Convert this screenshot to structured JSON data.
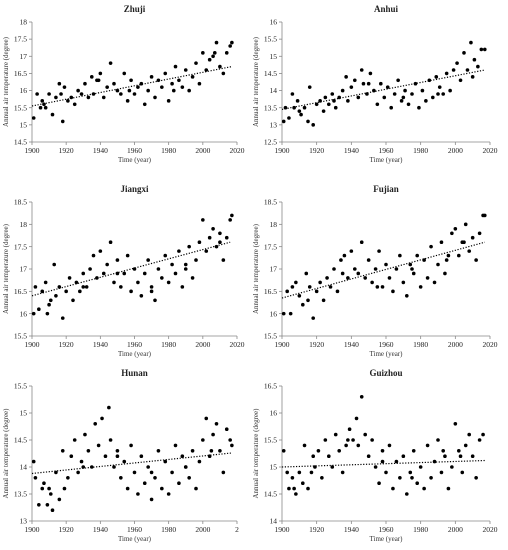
{
  "chart_data": [
    {
      "type": "scatter",
      "title": "Zhuji",
      "xlabel": "Time (year)",
      "ylabel": "Annual air temperature (degree)",
      "xlim": [
        1900,
        2020
      ],
      "ylim": [
        14.5,
        18
      ],
      "xticks": [
        "1900",
        "1920",
        "1940",
        "1960",
        "1980",
        "2000",
        "2020"
      ],
      "yticks": [
        "14.5",
        "15",
        "15.5",
        "16",
        "16.5",
        "17",
        "17.5",
        "18"
      ],
      "trend": {
        "x": [
          1900,
          2017
        ],
        "y": [
          15.55,
          16.7
        ]
      },
      "points": {
        "x": [
          1901,
          1903,
          1905,
          1907,
          1908,
          1910,
          1912,
          1914,
          1916,
          1918,
          1919,
          1921,
          1923,
          1925,
          1927,
          1929,
          1931,
          1933,
          1935,
          1936,
          1938,
          1940,
          1942,
          1944,
          1946,
          1948,
          1950,
          1952,
          1954,
          1956,
          1958,
          1960,
          1962,
          1964,
          1966,
          1968,
          1970,
          1972,
          1974,
          1976,
          1978,
          1980,
          1982,
          1984,
          1986,
          1988,
          1990,
          1992,
          1994,
          1996,
          1998,
          2000,
          2002,
          2004,
          2006,
          2008,
          2010,
          2012,
          2014,
          2016,
          2017,
          1906,
          1917,
          1939,
          1957,
          1983,
          2007
        ],
        "y": [
          15.2,
          15.9,
          15.5,
          15.6,
          15.5,
          15.9,
          15.3,
          15.8,
          16.2,
          15.1,
          16.1,
          15.7,
          15.8,
          15.6,
          16.0,
          15.9,
          16.2,
          15.8,
          16.4,
          15.9,
          16.3,
          16.5,
          15.8,
          16.1,
          16.8,
          16.2,
          16.0,
          15.9,
          16.5,
          15.7,
          16.3,
          15.9,
          16.1,
          16.2,
          15.6,
          16.0,
          16.4,
          15.8,
          16.3,
          16.1,
          16.5,
          15.7,
          16.2,
          16.7,
          16.3,
          16.1,
          16.6,
          16.0,
          16.4,
          16.8,
          16.2,
          17.1,
          16.6,
          16.9,
          17.0,
          17.4,
          16.7,
          16.5,
          17.1,
          17.3,
          17.4,
          15.7,
          15.9,
          16.3,
          16.0,
          16.0,
          17.1
        ]
      }
    },
    {
      "type": "scatter",
      "title": "Anhui",
      "xlabel": "Time (year)",
      "ylabel": "Annual air temperature (degree)",
      "xlim": [
        1900,
        2020
      ],
      "ylim": [
        12.5,
        16
      ],
      "xticks": [
        "1900",
        "1920",
        "1940",
        "1960",
        "1980",
        "2000",
        "2020"
      ],
      "yticks": [
        "12.5",
        "13",
        "13.5",
        "14",
        "14.5",
        "15",
        "15.5",
        "16"
      ],
      "trend": {
        "x": [
          1900,
          2017
        ],
        "y": [
          13.45,
          14.6
        ]
      },
      "points": {
        "x": [
          1901,
          1902,
          1904,
          1906,
          1907,
          1909,
          1911,
          1913,
          1915,
          1916,
          1918,
          1920,
          1922,
          1924,
          1925,
          1927,
          1929,
          1931,
          1933,
          1935,
          1937,
          1938,
          1940,
          1942,
          1944,
          1946,
          1947,
          1949,
          1951,
          1953,
          1955,
          1957,
          1959,
          1961,
          1963,
          1965,
          1967,
          1969,
          1971,
          1973,
          1975,
          1977,
          1979,
          1981,
          1983,
          1985,
          1987,
          1989,
          1991,
          1993,
          1995,
          1997,
          1999,
          2001,
          2003,
          2005,
          2007,
          2009,
          2011,
          2013,
          2015,
          2017,
          1910,
          1930,
          1950,
          1970,
          1990,
          2010
        ],
        "y": [
          13.1,
          13.5,
          13.2,
          13.9,
          13.5,
          13.7,
          13.3,
          13.5,
          13.1,
          14.1,
          13.0,
          13.6,
          13.7,
          13.4,
          13.8,
          13.6,
          13.9,
          13.5,
          13.8,
          14.0,
          14.4,
          13.7,
          14.1,
          14.3,
          13.8,
          14.6,
          14.2,
          13.9,
          14.5,
          14.0,
          13.6,
          14.2,
          13.8,
          14.1,
          13.5,
          13.9,
          14.3,
          13.7,
          14.0,
          13.6,
          13.9,
          14.2,
          13.5,
          14.0,
          13.7,
          14.3,
          13.8,
          14.4,
          14.1,
          13.9,
          14.5,
          14.0,
          14.6,
          14.8,
          14.3,
          15.1,
          14.6,
          15.4,
          14.9,
          14.7,
          15.2,
          15.2,
          13.4,
          13.7,
          14.2,
          13.8,
          13.9,
          14.4
        ]
      }
    },
    {
      "type": "scatter",
      "title": "Jiangxi",
      "xlabel": "Time (year)",
      "ylabel": "Annual air temperature (degree)",
      "xlim": [
        1900,
        2020
      ],
      "ylim": [
        15.5,
        18.5
      ],
      "xticks": [
        "1900",
        "1920",
        "1940",
        "1960",
        "1980",
        "2000",
        "2020"
      ],
      "yticks": [
        "15.5",
        "16",
        "16.5",
        "17",
        "17.5",
        "18",
        "18.5"
      ],
      "trend": {
        "x": [
          1900,
          2016
        ],
        "y": [
          16.4,
          17.6
        ]
      },
      "points": {
        "x": [
          1901,
          1902,
          1904,
          1906,
          1908,
          1909,
          1911,
          1913,
          1914,
          1916,
          1918,
          1920,
          1922,
          1924,
          1926,
          1928,
          1930,
          1932,
          1934,
          1936,
          1938,
          1940,
          1942,
          1944,
          1946,
          1948,
          1950,
          1952,
          1954,
          1956,
          1958,
          1960,
          1962,
          1964,
          1966,
          1968,
          1970,
          1972,
          1974,
          1976,
          1978,
          1980,
          1982,
          1984,
          1986,
          1988,
          1990,
          1992,
          1994,
          1996,
          1998,
          2000,
          2002,
          2004,
          2006,
          2008,
          2010,
          2012,
          2014,
          2016,
          2017,
          1910,
          1930,
          1950,
          1970,
          1990,
          2010
        ],
        "y": [
          16.0,
          16.6,
          16.1,
          16.5,
          16.7,
          16.0,
          16.3,
          17.1,
          16.4,
          16.6,
          15.9,
          16.5,
          16.8,
          16.3,
          16.7,
          16.5,
          16.9,
          16.6,
          17.0,
          17.3,
          16.8,
          17.4,
          16.9,
          17.1,
          17.6,
          16.7,
          17.2,
          16.6,
          16.9,
          17.3,
          16.5,
          17.0,
          16.7,
          16.4,
          16.9,
          17.2,
          16.6,
          16.3,
          17.0,
          16.8,
          17.3,
          16.7,
          17.1,
          16.9,
          17.4,
          16.6,
          17.0,
          17.5,
          16.8,
          17.2,
          17.6,
          18.1,
          17.4,
          17.7,
          17.9,
          17.5,
          17.8,
          17.2,
          17.7,
          18.1,
          18.2,
          16.2,
          16.6,
          16.9,
          16.5,
          17.1,
          17.6
        ]
      }
    },
    {
      "type": "scatter",
      "title": "Fujian",
      "xlabel": "Time (year)",
      "ylabel": "Annual air temperature (degree)",
      "xlim": [
        1900,
        2020
      ],
      "ylim": [
        15.5,
        18.5
      ],
      "xticks": [
        "1900",
        "1920",
        "1940",
        "1960",
        "1980",
        "2000",
        "2020"
      ],
      "yticks": [
        "15.5",
        "16",
        "16.5",
        "17",
        "17.5",
        "18",
        "18.5"
      ],
      "trend": {
        "x": [
          1900,
          2017
        ],
        "y": [
          16.35,
          17.6
        ]
      },
      "points": {
        "x": [
          1901,
          1903,
          1905,
          1906,
          1908,
          1910,
          1912,
          1914,
          1916,
          1918,
          1920,
          1922,
          1924,
          1926,
          1928,
          1930,
          1932,
          1934,
          1936,
          1938,
          1940,
          1942,
          1944,
          1946,
          1948,
          1950,
          1952,
          1954,
          1956,
          1958,
          1960,
          1962,
          1964,
          1966,
          1968,
          1970,
          1972,
          1974,
          1976,
          1978,
          1980,
          1982,
          1984,
          1986,
          1988,
          1990,
          1992,
          1994,
          1996,
          1998,
          2000,
          2002,
          2004,
          2006,
          2008,
          2010,
          2012,
          2014,
          2016,
          2017,
          1915,
          1935,
          1955,
          1975,
          1995,
          2005
        ],
        "y": [
          16.0,
          16.5,
          16.0,
          16.6,
          16.7,
          16.4,
          16.2,
          16.9,
          16.6,
          15.9,
          16.5,
          16.7,
          16.3,
          16.8,
          16.6,
          17.0,
          16.5,
          17.2,
          17.3,
          16.8,
          17.4,
          17.0,
          16.9,
          17.6,
          16.8,
          17.2,
          16.7,
          17.0,
          17.4,
          16.6,
          17.1,
          16.8,
          16.5,
          17.0,
          17.3,
          16.7,
          16.4,
          17.1,
          16.9,
          17.3,
          16.6,
          17.2,
          16.8,
          17.5,
          16.7,
          17.1,
          17.6,
          16.9,
          17.3,
          17.8,
          17.9,
          17.3,
          17.6,
          18.0,
          17.4,
          17.7,
          17.2,
          17.8,
          18.2,
          18.2,
          16.3,
          16.9,
          16.6,
          17.0,
          17.2,
          17.6
        ]
      }
    },
    {
      "type": "scatter",
      "title": "Hunan",
      "xlabel": "Time (year)",
      "ylabel": "Annual air temperature (degree)",
      "xlim": [
        1900,
        2020
      ],
      "ylim": [
        13,
        15.5
      ],
      "xticks": [
        "1900",
        "1920",
        "1940",
        "1960",
        "1980",
        "2000",
        "2"
      ],
      "yticks": [
        "13",
        "13.5",
        "14",
        "14.5",
        "15",
        "15.5"
      ],
      "trend": {
        "x": [
          1900,
          2017
        ],
        "y": [
          13.88,
          14.26
        ]
      },
      "points": {
        "x": [
          1901,
          1902,
          1904,
          1906,
          1907,
          1909,
          1911,
          1912,
          1914,
          1916,
          1918,
          1919,
          1921,
          1923,
          1925,
          1927,
          1929,
          1931,
          1933,
          1935,
          1937,
          1939,
          1941,
          1943,
          1945,
          1946,
          1948,
          1950,
          1952,
          1954,
          1956,
          1958,
          1960,
          1962,
          1964,
          1966,
          1968,
          1970,
          1972,
          1974,
          1976,
          1978,
          1980,
          1982,
          1984,
          1986,
          1988,
          1990,
          1992,
          1994,
          1996,
          1998,
          2000,
          2002,
          2004,
          2006,
          2008,
          2010,
          2012,
          2014,
          2016,
          2017,
          1910,
          1930,
          1950,
          1970,
          1990,
          2005
        ],
        "y": [
          14.1,
          13.8,
          13.3,
          13.6,
          13.7,
          13.3,
          13.5,
          13.2,
          13.9,
          13.4,
          14.3,
          13.6,
          13.8,
          14.2,
          14.5,
          13.9,
          14.1,
          14.6,
          14.3,
          14.0,
          14.8,
          14.4,
          14.9,
          14.2,
          15.1,
          14.5,
          14.0,
          14.3,
          13.8,
          14.1,
          13.6,
          14.4,
          13.9,
          13.5,
          14.2,
          13.7,
          14.0,
          13.4,
          13.8,
          14.3,
          13.6,
          14.1,
          13.5,
          13.9,
          14.4,
          13.7,
          14.2,
          14.0,
          13.8,
          14.3,
          13.6,
          14.1,
          14.5,
          14.9,
          14.2,
          14.6,
          14.8,
          14.3,
          13.9,
          14.7,
          14.5,
          14.4,
          13.6,
          14.0,
          14.2,
          13.9,
          14.0,
          14.3
        ]
      }
    },
    {
      "type": "scatter",
      "title": "Guizhou",
      "xlabel": "Time (year)",
      "ylabel": "Annual air temperature (degree)",
      "xlim": [
        1900,
        2020
      ],
      "ylim": [
        14,
        16.5
      ],
      "xticks": [
        "1900",
        "1920",
        "1940",
        "1960",
        "1980",
        "2000",
        "2020"
      ],
      "yticks": [
        "14",
        "14.5",
        "15",
        "15.5",
        "16",
        "16.5"
      ],
      "trend": {
        "x": [
          1900,
          2017
        ],
        "y": [
          15.0,
          15.12
        ]
      },
      "points": {
        "x": [
          1901,
          1903,
          1904,
          1906,
          1908,
          1910,
          1912,
          1913,
          1915,
          1917,
          1919,
          1921,
          1923,
          1925,
          1927,
          1929,
          1931,
          1933,
          1935,
          1937,
          1939,
          1941,
          1943,
          1944,
          1946,
          1948,
          1950,
          1952,
          1954,
          1956,
          1958,
          1960,
          1962,
          1964,
          1966,
          1968,
          1970,
          1972,
          1974,
          1976,
          1978,
          1980,
          1982,
          1984,
          1986,
          1988,
          1990,
          1992,
          1994,
          1996,
          1998,
          2000,
          2002,
          2004,
          2006,
          2008,
          2010,
          2012,
          2014,
          2016,
          1907,
          1918,
          1938,
          1958,
          1975,
          1993,
          2003
        ],
        "y": [
          15.3,
          14.9,
          14.6,
          14.8,
          14.5,
          14.9,
          14.7,
          15.4,
          14.6,
          14.9,
          15.0,
          15.3,
          14.8,
          15.5,
          15.2,
          15.0,
          15.6,
          15.3,
          14.9,
          15.4,
          15.7,
          15.5,
          15.9,
          15.4,
          16.3,
          15.6,
          15.2,
          15.5,
          15.0,
          14.7,
          15.3,
          14.9,
          15.4,
          14.6,
          15.1,
          14.8,
          15.2,
          14.5,
          14.9,
          15.3,
          14.7,
          15.0,
          14.6,
          15.4,
          14.8,
          15.1,
          15.5,
          14.9,
          15.2,
          14.6,
          15.0,
          15.8,
          15.3,
          14.9,
          15.4,
          15.6,
          15.2,
          14.8,
          15.5,
          15.6,
          14.6,
          15.2,
          15.5,
          15.1,
          14.8,
          15.3,
          15.2
        ]
      }
    }
  ]
}
